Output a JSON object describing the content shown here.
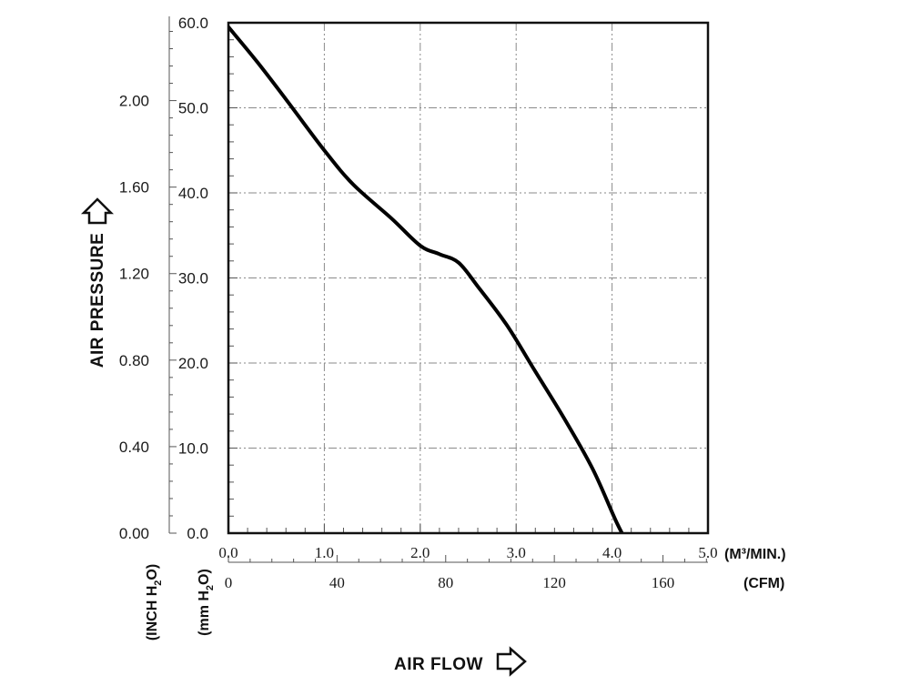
{
  "chart_data": {
    "type": "line",
    "title": "",
    "xlabel": "AIR FLOW",
    "ylabel": "AIR PRESSURE",
    "grid": true,
    "x_primary": {
      "unit_label": "(M³/MIN.)",
      "range": [
        0,
        5
      ],
      "ticks": [
        "0.0",
        "1.0",
        "2.0",
        "3.0",
        "4.0",
        "5.0"
      ]
    },
    "x_secondary": {
      "unit_label": "(CFM)",
      "range": [
        0,
        176.57
      ],
      "ticks": [
        "0",
        "40",
        "80",
        "120",
        "160"
      ]
    },
    "y_primary": {
      "unit_label": "mm H2O",
      "range": [
        0,
        60
      ],
      "ticks": [
        "0.0",
        "10.0",
        "20.0",
        "30.0",
        "40.0",
        "50.0",
        "60.0"
      ]
    },
    "y_secondary": {
      "unit_label": "INCH H2O",
      "range": [
        0,
        2.36
      ],
      "ticks": [
        "0.00",
        "0.40",
        "0.80",
        "1.20",
        "1.60",
        "2.00"
      ]
    },
    "series": [
      {
        "name": "",
        "x": [
          0.0,
          0.3,
          0.6,
          1.0,
          1.3,
          1.7,
          2.0,
          2.2,
          2.4,
          2.6,
          2.9,
          3.2,
          3.5,
          3.8,
          4.05,
          4.2
        ],
        "y": [
          59.5,
          55.4,
          51.0,
          45.0,
          41.0,
          37.0,
          33.8,
          32.8,
          31.8,
          29.0,
          24.5,
          19.0,
          13.5,
          7.5,
          1.2,
          -2.0
        ]
      }
    ]
  }
}
